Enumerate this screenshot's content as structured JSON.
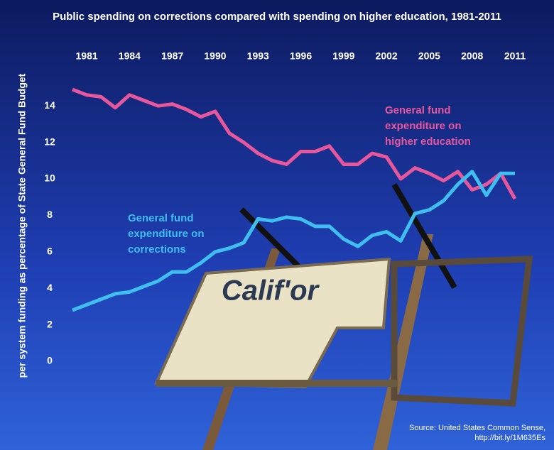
{
  "chart_data": {
    "type": "line",
    "title": "Public spending on corrections compared with spending on higher education, 1981-2011",
    "y_label": "per system funding as percentage of State General Fund Budget",
    "x": [
      1980,
      1981,
      1982,
      1983,
      1984,
      1985,
      1986,
      1987,
      1988,
      1989,
      1990,
      1991,
      1992,
      1993,
      1994,
      1995,
      1996,
      1997,
      1998,
      1999,
      2000,
      2001,
      2002,
      2003,
      2004,
      2005,
      2006,
      2007,
      2008,
      2009,
      2010,
      2011
    ],
    "xlim": [
      1980,
      2011
    ],
    "xticks": [
      1981,
      1984,
      1987,
      1990,
      1993,
      1996,
      1999,
      2002,
      2005,
      2008,
      2011
    ],
    "ylim": [
      0,
      15
    ],
    "yticks": [
      0,
      2,
      4,
      6,
      8,
      10,
      12,
      14
    ],
    "series": [
      {
        "name": "General fund expenditure on higher education",
        "color": "#e8569b",
        "values": [
          14.9,
          14.6,
          14.5,
          13.9,
          14.6,
          14.3,
          14.0,
          14.1,
          13.8,
          13.4,
          13.7,
          12.5,
          12.0,
          11.4,
          11.0,
          10.8,
          11.5,
          11.5,
          11.8,
          10.8,
          10.8,
          11.4,
          11.2,
          10.0,
          10.6,
          10.3,
          9.9,
          10.4,
          9.4,
          9.7,
          10.3,
          8.9
        ]
      },
      {
        "name": "General fund expenditure on corrections",
        "color": "#3fbfef",
        "values": [
          2.8,
          3.1,
          3.4,
          3.7,
          3.8,
          4.1,
          4.4,
          4.9,
          4.9,
          5.4,
          6.0,
          6.2,
          6.5,
          7.8,
          7.7,
          7.9,
          7.8,
          7.4,
          7.4,
          6.7,
          6.3,
          6.9,
          7.1,
          6.6,
          8.1,
          8.3,
          8.8,
          9.7,
          10.4,
          9.1,
          10.3,
          10.3
        ]
      }
    ],
    "annotations": [
      {
        "lines": [
          "General fund",
          "expenditure on",
          "higher education"
        ]
      },
      {
        "lines": [
          "General fund",
          "expenditure on",
          "corrections"
        ]
      }
    ],
    "source": [
      "Source: United States Common Sense,",
      "http://bit.ly/1M635Es"
    ]
  }
}
